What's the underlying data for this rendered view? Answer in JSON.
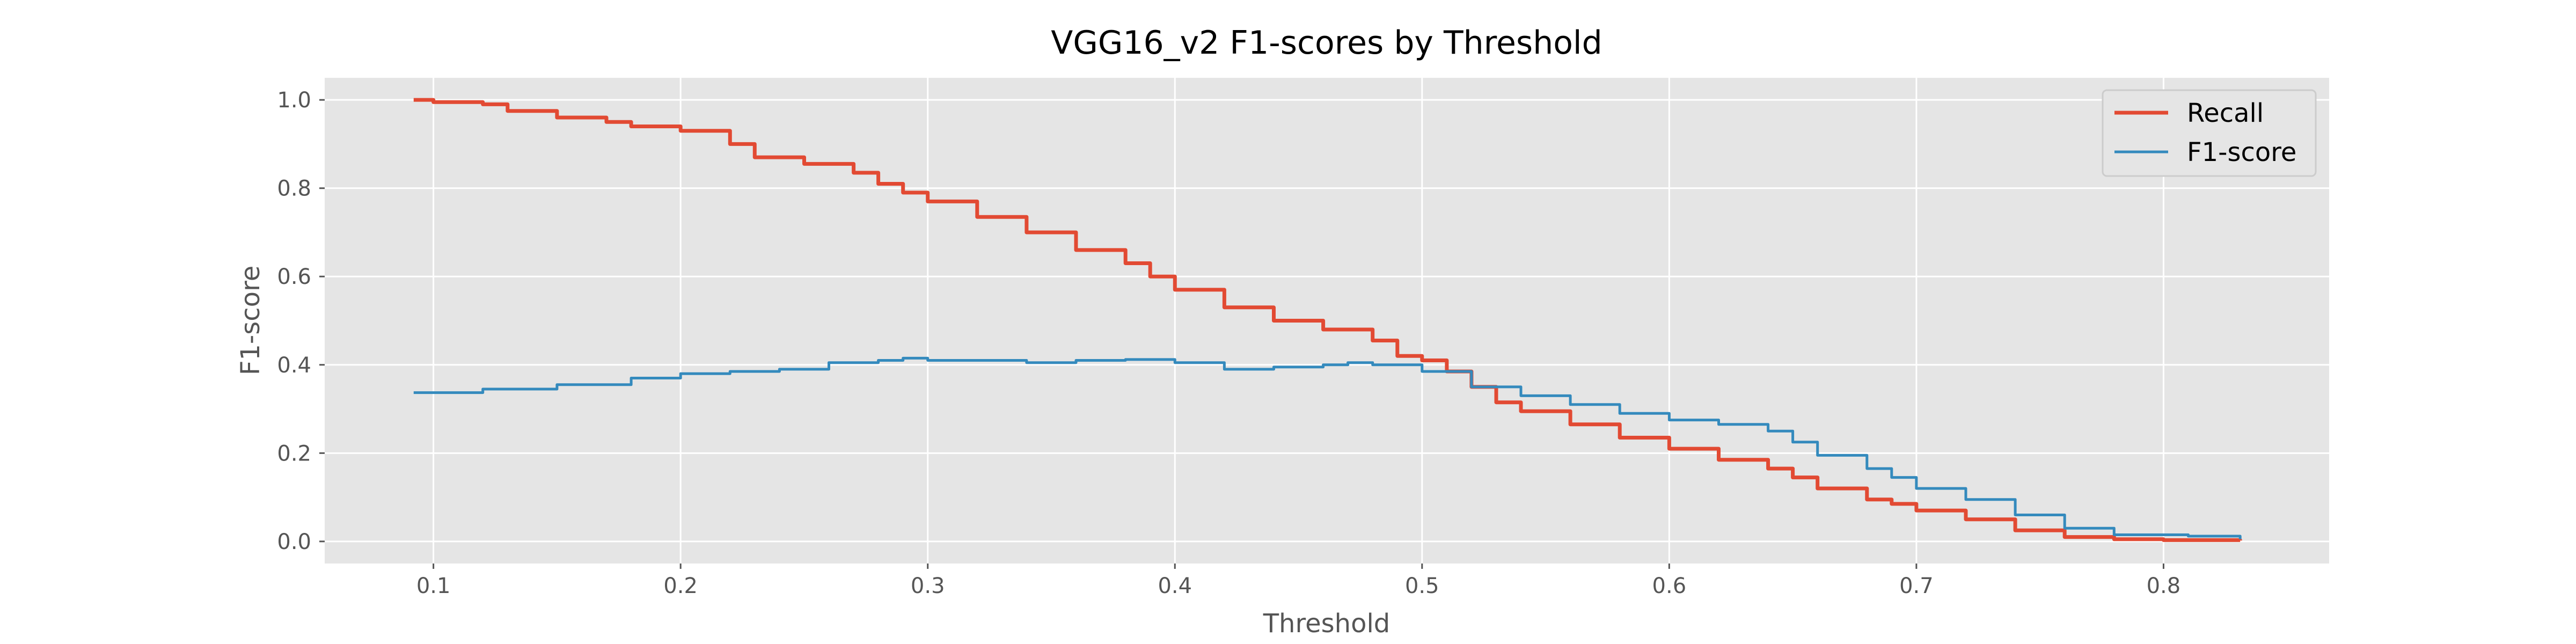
{
  "chart_data": {
    "type": "line",
    "title": "VGG16_v2 F1-scores by Threshold",
    "xlabel": "Threshold",
    "ylabel": "F1-score",
    "xlim": [
      0.056,
      0.867
    ],
    "ylim": [
      -0.05,
      1.05
    ],
    "xticks": [
      0.1,
      0.2,
      0.3,
      0.4,
      0.5,
      0.6,
      0.7,
      0.8
    ],
    "xtick_labels": [
      "0.1",
      "0.2",
      "0.3",
      "0.4",
      "0.5",
      "0.6",
      "0.7",
      "0.8"
    ],
    "yticks": [
      0.0,
      0.2,
      0.4,
      0.6,
      0.8,
      1.0
    ],
    "ytick_labels": [
      "0.0",
      "0.2",
      "0.4",
      "0.6",
      "0.8",
      "1.0"
    ],
    "grid": true,
    "legend_position": "top-right",
    "series": [
      {
        "name": "Recall",
        "color": "#E24A33",
        "points": [
          [
            0.092,
            1.0
          ],
          [
            0.1,
            0.995
          ],
          [
            0.12,
            0.99
          ],
          [
            0.13,
            0.975
          ],
          [
            0.15,
            0.96
          ],
          [
            0.17,
            0.95
          ],
          [
            0.18,
            0.94
          ],
          [
            0.2,
            0.93
          ],
          [
            0.22,
            0.9
          ],
          [
            0.23,
            0.87
          ],
          [
            0.25,
            0.855
          ],
          [
            0.27,
            0.835
          ],
          [
            0.28,
            0.81
          ],
          [
            0.29,
            0.79
          ],
          [
            0.3,
            0.77
          ],
          [
            0.32,
            0.735
          ],
          [
            0.34,
            0.7
          ],
          [
            0.36,
            0.66
          ],
          [
            0.38,
            0.63
          ],
          [
            0.39,
            0.6
          ],
          [
            0.4,
            0.57
          ],
          [
            0.42,
            0.53
          ],
          [
            0.44,
            0.5
          ],
          [
            0.46,
            0.48
          ],
          [
            0.48,
            0.455
          ],
          [
            0.49,
            0.42
          ],
          [
            0.5,
            0.41
          ],
          [
            0.51,
            0.385
          ],
          [
            0.52,
            0.35
          ],
          [
            0.53,
            0.315
          ],
          [
            0.54,
            0.295
          ],
          [
            0.56,
            0.265
          ],
          [
            0.58,
            0.235
          ],
          [
            0.6,
            0.21
          ],
          [
            0.62,
            0.185
          ],
          [
            0.64,
            0.165
          ],
          [
            0.65,
            0.145
          ],
          [
            0.66,
            0.12
          ],
          [
            0.68,
            0.095
          ],
          [
            0.69,
            0.085
          ],
          [
            0.7,
            0.07
          ],
          [
            0.72,
            0.05
          ],
          [
            0.74,
            0.025
          ],
          [
            0.76,
            0.01
          ],
          [
            0.78,
            0.005
          ],
          [
            0.8,
            0.003
          ],
          [
            0.831,
            0.002
          ]
        ]
      },
      {
        "name": "F1-score",
        "color": "#348ABD",
        "points": [
          [
            0.092,
            0.337
          ],
          [
            0.12,
            0.345
          ],
          [
            0.15,
            0.355
          ],
          [
            0.18,
            0.37
          ],
          [
            0.2,
            0.38
          ],
          [
            0.22,
            0.385
          ],
          [
            0.24,
            0.39
          ],
          [
            0.26,
            0.405
          ],
          [
            0.28,
            0.41
          ],
          [
            0.29,
            0.415
          ],
          [
            0.3,
            0.41
          ],
          [
            0.32,
            0.41
          ],
          [
            0.34,
            0.405
          ],
          [
            0.36,
            0.41
          ],
          [
            0.38,
            0.412
          ],
          [
            0.4,
            0.405
          ],
          [
            0.42,
            0.39
          ],
          [
            0.44,
            0.395
          ],
          [
            0.46,
            0.4
          ],
          [
            0.47,
            0.405
          ],
          [
            0.48,
            0.4
          ],
          [
            0.5,
            0.385
          ],
          [
            0.52,
            0.35
          ],
          [
            0.54,
            0.33
          ],
          [
            0.56,
            0.31
          ],
          [
            0.58,
            0.29
          ],
          [
            0.6,
            0.275
          ],
          [
            0.62,
            0.265
          ],
          [
            0.64,
            0.25
          ],
          [
            0.65,
            0.225
          ],
          [
            0.66,
            0.195
          ],
          [
            0.68,
            0.165
          ],
          [
            0.69,
            0.145
          ],
          [
            0.7,
            0.12
          ],
          [
            0.72,
            0.095
          ],
          [
            0.74,
            0.06
          ],
          [
            0.76,
            0.03
          ],
          [
            0.78,
            0.015
          ],
          [
            0.81,
            0.012
          ],
          [
            0.831,
            0.005
          ]
        ]
      }
    ]
  }
}
